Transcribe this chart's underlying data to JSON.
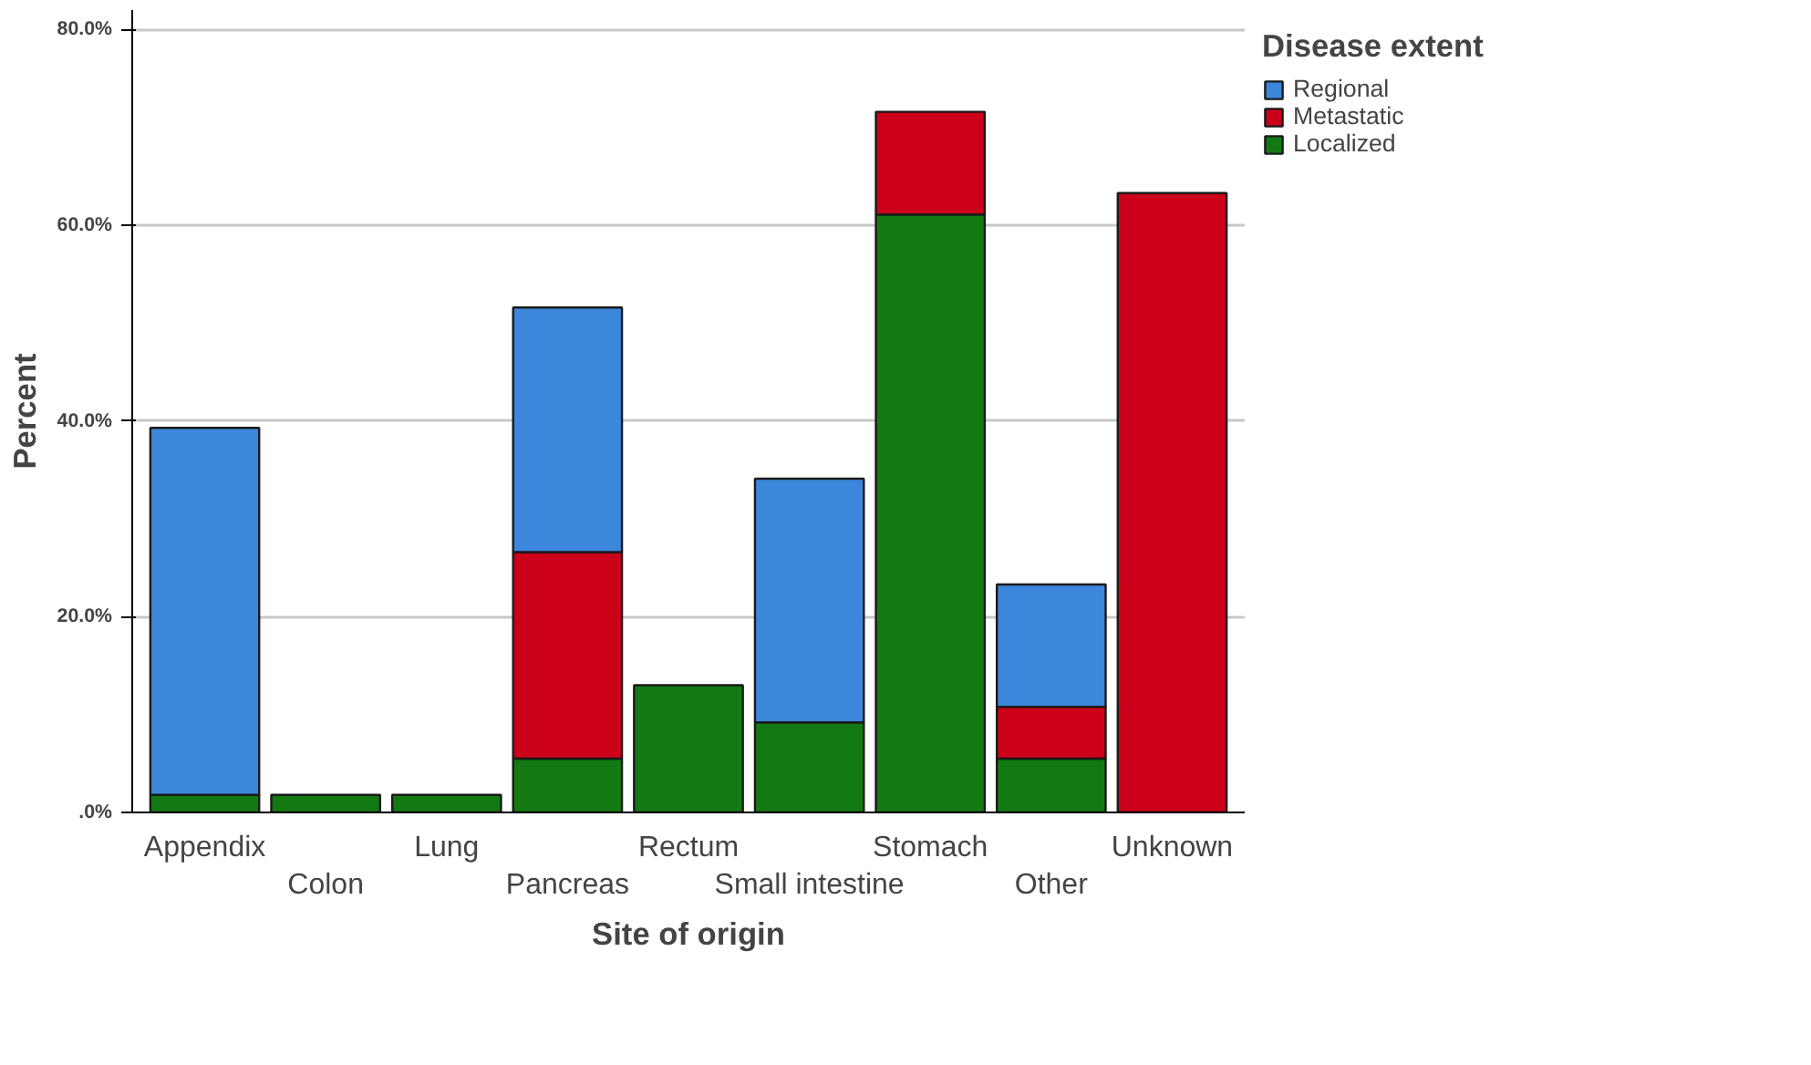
{
  "chart_data": {
    "type": "bar",
    "stacked": true,
    "xlabel": "Site of origin",
    "ylabel": "Percent",
    "legend_title": "Disease extent",
    "legend": "top right",
    "grid": "y",
    "categories": [
      "Appendix",
      "Colon",
      "Lung",
      "Pancreas",
      "Rectum",
      "Small intestine",
      "Stomach",
      "Other",
      "Unknown"
    ],
    "series": [
      {
        "name": "Localized",
        "color": "#137a13",
        "values": [
          1.8,
          1.8,
          1.8,
          5.5,
          13.0,
          9.2,
          61.1,
          5.5,
          null
        ]
      },
      {
        "name": "Metastatic",
        "color": "#cc0019",
        "values": [
          null,
          null,
          null,
          21.1,
          null,
          null,
          10.5,
          5.3,
          63.3
        ]
      },
      {
        "name": "Regional",
        "color": "#3c87dc",
        "values": [
          37.5,
          null,
          null,
          25.0,
          null,
          24.9,
          null,
          12.5,
          null
        ]
      }
    ],
    "ylim": [
      0,
      82
    ],
    "yticks": [
      {
        "value": 0,
        "label": ".0%"
      },
      {
        "value": 20,
        "label": "20.0%"
      },
      {
        "value": 40,
        "label": "40.0%"
      },
      {
        "value": 60,
        "label": "60.0%"
      },
      {
        "value": 80,
        "label": "80.0%"
      }
    ]
  }
}
